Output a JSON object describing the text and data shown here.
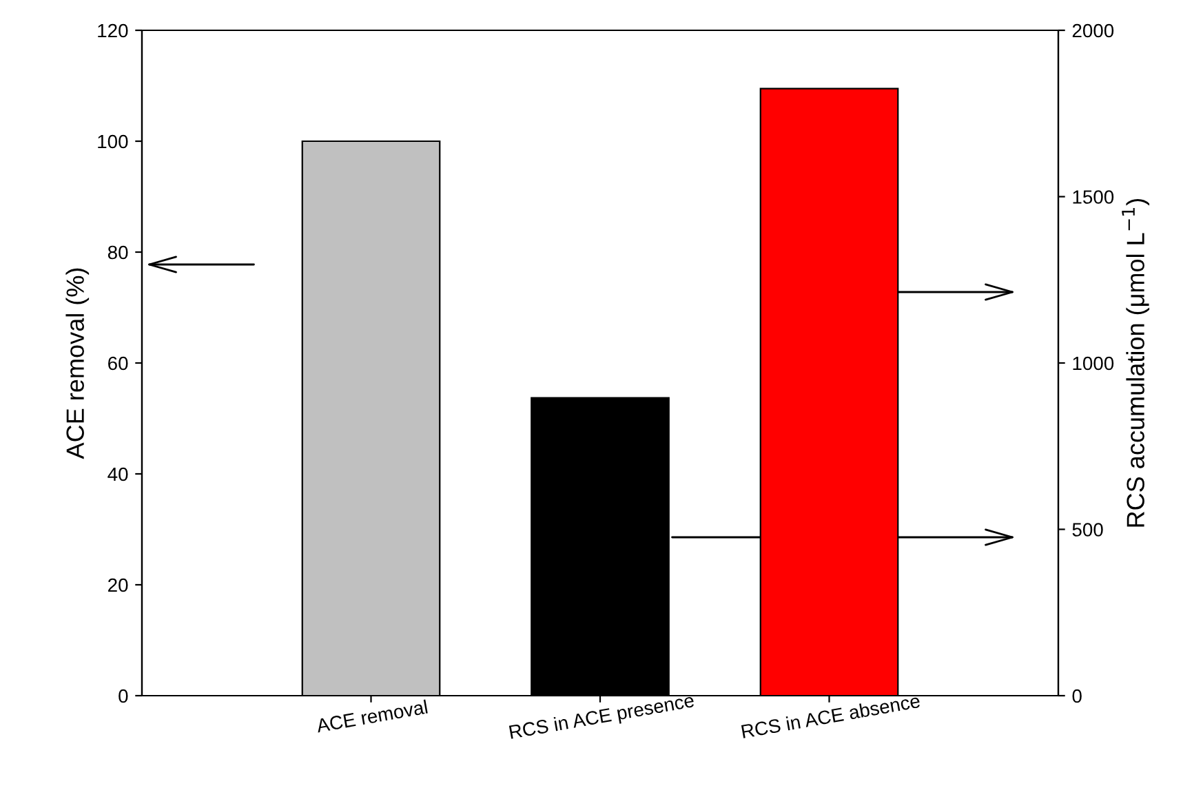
{
  "chart_data": {
    "type": "bar",
    "categories": [
      "ACE removal",
      "RCS in ACE presence",
      "RCS in ACE absence"
    ],
    "series": [
      {
        "values": [
          100,
          null,
          null
        ],
        "colors": [
          "#c0c0c0",
          "#000000",
          "#ff0000"
        ]
      },
      {
        "values": [
          null,
          895,
          1825
        ],
        "axis": "y2",
        "colors": [
          "#c0c0c0",
          "#000000",
          "#ff0000"
        ]
      }
    ],
    "ylabel": "ACE removal (%)",
    "y2label": "RCS accumulation (μmol L$^{−1}$)",
    "ylim": [
      0,
      120
    ],
    "yticks": [
      0,
      20,
      40,
      60,
      80,
      100,
      120
    ],
    "y2lim": [
      0,
      2000
    ],
    "y2ticks": [
      0,
      500,
      1000,
      1500,
      2000
    ],
    "grid": false,
    "legend": false
  }
}
